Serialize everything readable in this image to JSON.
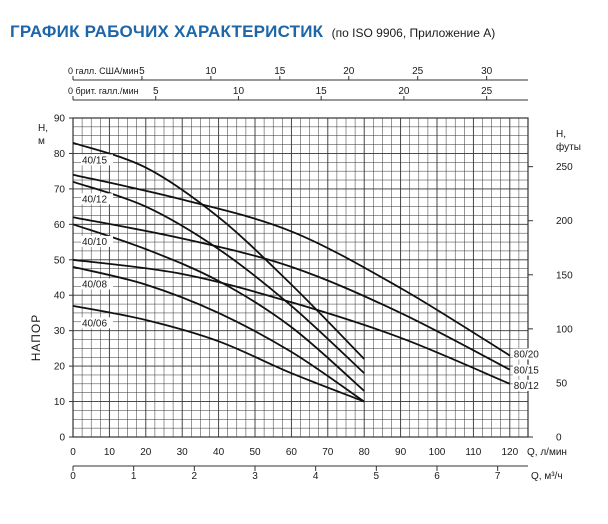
{
  "title": "ГРАФИК РАБОЧИХ ХАРАКТЕРИСТИК",
  "subtitle": "(по ISO 9906, Приложение А)",
  "colors": {
    "title": "#1e66a8",
    "grid": "#333333",
    "curve": "#111111"
  },
  "chart_data": {
    "type": "line",
    "x_axis": {
      "label": "Q, л/мин",
      "range": [
        0,
        125
      ],
      "ticks": [
        0,
        10,
        20,
        30,
        40,
        50,
        60,
        70,
        80,
        90,
        100,
        110,
        120
      ]
    },
    "x_axis_secondary": [
      {
        "label": "Q, м³/ч",
        "range": [
          0,
          7.5
        ],
        "ticks": [
          0,
          1,
          2,
          3,
          4,
          5,
          6,
          7
        ]
      },
      {
        "label": "0 брит. галл./мин",
        "range": [
          0,
          27.5
        ],
        "ticks": [
          5,
          10,
          15,
          20,
          25
        ]
      },
      {
        "label": "0 галл. США/мин",
        "range": [
          0,
          33
        ],
        "ticks": [
          5,
          10,
          15,
          20,
          25,
          30
        ]
      }
    ],
    "y_axis": {
      "label": "НАПОР",
      "unit": "Н,\nм",
      "range": [
        0,
        90
      ],
      "ticks": [
        0,
        10,
        20,
        30,
        40,
        50,
        60,
        70,
        80,
        90
      ]
    },
    "y_axis_secondary": {
      "unit": "Н,\nфуты",
      "range": [
        0,
        295
      ],
      "ticks": [
        0,
        50,
        100,
        150,
        200,
        250
      ]
    },
    "grid": true,
    "series": [
      {
        "name": "40/15",
        "x": [
          0,
          20,
          40,
          60,
          80
        ],
        "y": [
          83,
          76,
          62,
          43,
          22
        ]
      },
      {
        "name": "40/12",
        "x": [
          0,
          20,
          40,
          60,
          80
        ],
        "y": [
          72,
          65,
          53,
          37,
          18
        ]
      },
      {
        "name": "40/10",
        "x": [
          0,
          20,
          40,
          60,
          80
        ],
        "y": [
          60,
          53,
          44,
          31,
          13
        ]
      },
      {
        "name": "40/08",
        "x": [
          0,
          20,
          40,
          60,
          80
        ],
        "y": [
          48,
          43,
          35,
          24,
          10
        ]
      },
      {
        "name": "40/06",
        "x": [
          0,
          20,
          40,
          60,
          80
        ],
        "y": [
          37,
          33,
          27,
          18,
          10
        ]
      },
      {
        "name": "80/20",
        "x": [
          0,
          30,
          60,
          90,
          120
        ],
        "y": [
          74,
          67,
          58,
          42,
          23
        ]
      },
      {
        "name": "80/15",
        "x": [
          0,
          30,
          60,
          90,
          120
        ],
        "y": [
          62,
          56,
          48,
          35,
          19
        ]
      },
      {
        "name": "80/12",
        "x": [
          0,
          30,
          60,
          90,
          120
        ],
        "y": [
          50,
          46,
          38,
          28,
          15
        ]
      }
    ]
  }
}
